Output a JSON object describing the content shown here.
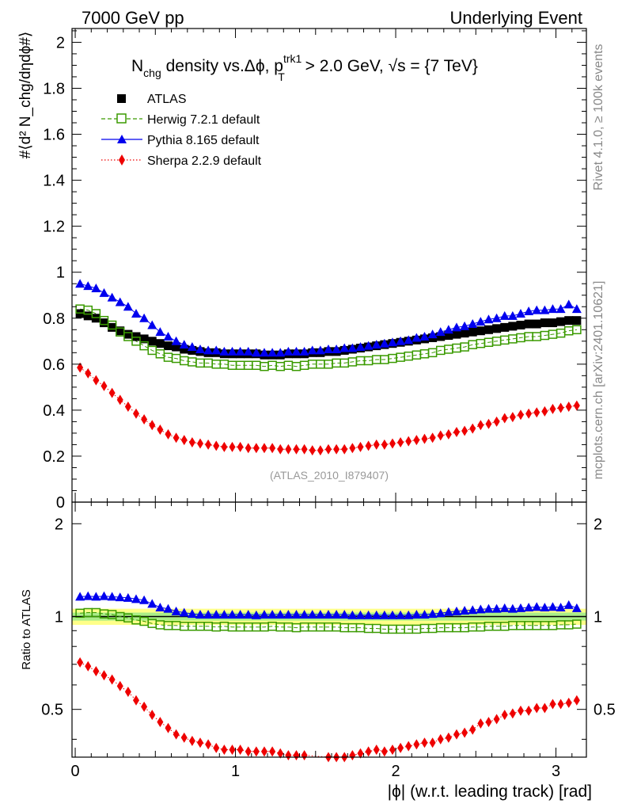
{
  "header": {
    "left": "7000 GeV pp",
    "right": "Underlying Event"
  },
  "title": {
    "main": "N",
    "main_sub": "chg",
    "rest": " density vs.Δϕ, p",
    "p_sup": "trk1",
    "p_sub": "T",
    "tail": " > 2.0 GeV, √s = {7 TeV}"
  },
  "ylabel_top": "#⟨d² N_chg/dηdϕ#⟩",
  "ylabel_bottom": "Ratio to ATLAS",
  "xlabel": "|ϕ| (w.r.t. leading track) [rad]",
  "analysis_tag": "(ATLAS_2010_I879407)",
  "side_text_top": "Rivet 4.1.0, ≥ 100k events",
  "side_text_bottom": "mcplots.cern.ch [arXiv:2401.10621]",
  "chart_data": {
    "type": "scatter",
    "x": [
      0.03,
      0.08,
      0.13,
      0.18,
      0.23,
      0.28,
      0.33,
      0.38,
      0.43,
      0.48,
      0.53,
      0.58,
      0.63,
      0.68,
      0.73,
      0.78,
      0.83,
      0.88,
      0.93,
      0.98,
      1.03,
      1.08,
      1.13,
      1.18,
      1.23,
      1.28,
      1.33,
      1.38,
      1.43,
      1.48,
      1.53,
      1.58,
      1.63,
      1.68,
      1.73,
      1.78,
      1.83,
      1.88,
      1.93,
      1.98,
      2.03,
      2.08,
      2.13,
      2.18,
      2.23,
      2.28,
      2.33,
      2.38,
      2.43,
      2.48,
      2.53,
      2.58,
      2.63,
      2.68,
      2.73,
      2.78,
      2.83,
      2.88,
      2.93,
      2.98,
      3.03,
      3.08,
      3.13
    ],
    "xlim": [
      -0.02,
      3.19
    ],
    "xticks": [
      "0",
      "1",
      "2",
      "3"
    ],
    "top_panel": {
      "ylim": [
        0,
        2.06
      ],
      "yticks": [
        "0",
        "0.2",
        "0.4",
        "0.6",
        "0.8",
        "1",
        "1.2",
        "1.4",
        "1.6",
        "1.8",
        "2"
      ],
      "series": [
        {
          "name": "ATLAS",
          "color": "#000000",
          "marker": "square",
          "values": [
            0.82,
            0.81,
            0.8,
            0.78,
            0.76,
            0.745,
            0.73,
            0.72,
            0.71,
            0.7,
            0.69,
            0.68,
            0.675,
            0.665,
            0.66,
            0.655,
            0.65,
            0.65,
            0.645,
            0.645,
            0.645,
            0.645,
            0.645,
            0.64,
            0.64,
            0.64,
            0.645,
            0.645,
            0.645,
            0.65,
            0.65,
            0.655,
            0.655,
            0.66,
            0.665,
            0.67,
            0.675,
            0.68,
            0.685,
            0.69,
            0.695,
            0.7,
            0.705,
            0.71,
            0.715,
            0.72,
            0.725,
            0.73,
            0.735,
            0.74,
            0.745,
            0.75,
            0.755,
            0.76,
            0.765,
            0.77,
            0.775,
            0.775,
            0.78,
            0.78,
            0.785,
            0.79,
            0.79
          ]
        },
        {
          "name": "Herwig 7.2.1 default",
          "color": "#3a9a00",
          "marker": "open-square",
          "line": "dashed",
          "values": [
            0.84,
            0.835,
            0.82,
            0.79,
            0.77,
            0.74,
            0.72,
            0.7,
            0.68,
            0.66,
            0.645,
            0.63,
            0.625,
            0.615,
            0.61,
            0.605,
            0.605,
            0.6,
            0.6,
            0.595,
            0.595,
            0.595,
            0.595,
            0.59,
            0.595,
            0.59,
            0.595,
            0.59,
            0.595,
            0.6,
            0.6,
            0.6,
            0.605,
            0.605,
            0.61,
            0.615,
            0.615,
            0.62,
            0.62,
            0.625,
            0.63,
            0.635,
            0.64,
            0.645,
            0.65,
            0.66,
            0.665,
            0.67,
            0.675,
            0.685,
            0.69,
            0.695,
            0.7,
            0.705,
            0.71,
            0.715,
            0.72,
            0.72,
            0.725,
            0.73,
            0.735,
            0.745,
            0.75
          ]
        },
        {
          "name": "Pythia 8.165 default",
          "color": "#0000ee",
          "marker": "triangle",
          "line": "solid",
          "values": [
            0.95,
            0.94,
            0.93,
            0.91,
            0.89,
            0.87,
            0.85,
            0.82,
            0.8,
            0.77,
            0.74,
            0.72,
            0.7,
            0.685,
            0.675,
            0.665,
            0.66,
            0.66,
            0.655,
            0.655,
            0.655,
            0.655,
            0.65,
            0.65,
            0.65,
            0.65,
            0.655,
            0.655,
            0.655,
            0.66,
            0.66,
            0.665,
            0.665,
            0.67,
            0.67,
            0.675,
            0.68,
            0.685,
            0.69,
            0.695,
            0.7,
            0.705,
            0.715,
            0.72,
            0.73,
            0.74,
            0.75,
            0.76,
            0.765,
            0.775,
            0.785,
            0.795,
            0.8,
            0.81,
            0.81,
            0.82,
            0.83,
            0.835,
            0.835,
            0.84,
            0.84,
            0.86,
            0.84
          ]
        },
        {
          "name": "Sherpa 2.2.9 default",
          "color": "#ee0000",
          "marker": "diamond",
          "line": "dotted",
          "values": [
            0.585,
            0.56,
            0.53,
            0.505,
            0.475,
            0.445,
            0.415,
            0.385,
            0.36,
            0.335,
            0.315,
            0.295,
            0.28,
            0.27,
            0.26,
            0.255,
            0.25,
            0.245,
            0.24,
            0.24,
            0.24,
            0.235,
            0.235,
            0.235,
            0.235,
            0.23,
            0.23,
            0.23,
            0.23,
            0.225,
            0.225,
            0.23,
            0.23,
            0.23,
            0.235,
            0.24,
            0.245,
            0.25,
            0.25,
            0.255,
            0.26,
            0.265,
            0.27,
            0.275,
            0.28,
            0.29,
            0.295,
            0.305,
            0.31,
            0.32,
            0.335,
            0.34,
            0.35,
            0.365,
            0.37,
            0.38,
            0.385,
            0.39,
            0.395,
            0.405,
            0.41,
            0.415,
            0.42
          ]
        }
      ]
    },
    "ratio_panel": {
      "ylim": [
        0.35,
        2.35
      ],
      "yticks": [
        "0.5",
        "1",
        "2"
      ],
      "band_inner": [
        0.97,
        1.03
      ],
      "band_outer": [
        0.94,
        1.06
      ],
      "series": [
        {
          "name": "Herwig 7.2.1 default",
          "color": "#3a9a00",
          "marker": "open-square",
          "line": "dashed",
          "values": [
            1.025,
            1.03,
            1.03,
            1.02,
            1.015,
            1.0,
            0.99,
            0.975,
            0.965,
            0.95,
            0.94,
            0.935,
            0.935,
            0.93,
            0.93,
            0.93,
            0.93,
            0.925,
            0.93,
            0.925,
            0.925,
            0.925,
            0.925,
            0.925,
            0.93,
            0.925,
            0.925,
            0.92,
            0.925,
            0.925,
            0.925,
            0.925,
            0.925,
            0.92,
            0.92,
            0.92,
            0.915,
            0.915,
            0.91,
            0.91,
            0.91,
            0.91,
            0.91,
            0.915,
            0.915,
            0.92,
            0.92,
            0.92,
            0.92,
            0.925,
            0.925,
            0.93,
            0.93,
            0.93,
            0.935,
            0.935,
            0.935,
            0.935,
            0.935,
            0.935,
            0.94,
            0.94,
            0.945
          ]
        },
        {
          "name": "Pythia 8.165 default",
          "color": "#0000ee",
          "marker": "triangle",
          "line": "solid",
          "values": [
            1.16,
            1.165,
            1.16,
            1.165,
            1.16,
            1.155,
            1.15,
            1.14,
            1.13,
            1.1,
            1.07,
            1.06,
            1.04,
            1.03,
            1.02,
            1.015,
            1.015,
            1.015,
            1.015,
            1.015,
            1.015,
            1.015,
            1.01,
            1.015,
            1.015,
            1.015,
            1.015,
            1.015,
            1.015,
            1.015,
            1.015,
            1.015,
            1.015,
            1.015,
            1.01,
            1.01,
            1.01,
            1.01,
            1.01,
            1.01,
            1.01,
            1.01,
            1.015,
            1.015,
            1.02,
            1.025,
            1.035,
            1.04,
            1.045,
            1.05,
            1.055,
            1.06,
            1.06,
            1.065,
            1.06,
            1.065,
            1.07,
            1.075,
            1.07,
            1.075,
            1.07,
            1.09,
            1.065
          ]
        },
        {
          "name": "Sherpa 2.2.9 default",
          "color": "#ee0000",
          "marker": "diamond",
          "line": "dotted",
          "values": [
            0.71,
            0.69,
            0.665,
            0.645,
            0.625,
            0.595,
            0.57,
            0.535,
            0.51,
            0.48,
            0.455,
            0.435,
            0.415,
            0.405,
            0.395,
            0.39,
            0.385,
            0.375,
            0.37,
            0.37,
            0.37,
            0.365,
            0.365,
            0.365,
            0.365,
            0.36,
            0.355,
            0.355,
            0.355,
            0.345,
            0.345,
            0.35,
            0.35,
            0.35,
            0.355,
            0.36,
            0.365,
            0.37,
            0.365,
            0.37,
            0.375,
            0.38,
            0.385,
            0.39,
            0.39,
            0.4,
            0.405,
            0.415,
            0.42,
            0.43,
            0.45,
            0.455,
            0.465,
            0.48,
            0.485,
            0.495,
            0.495,
            0.505,
            0.505,
            0.52,
            0.52,
            0.525,
            0.535
          ]
        }
      ]
    }
  }
}
